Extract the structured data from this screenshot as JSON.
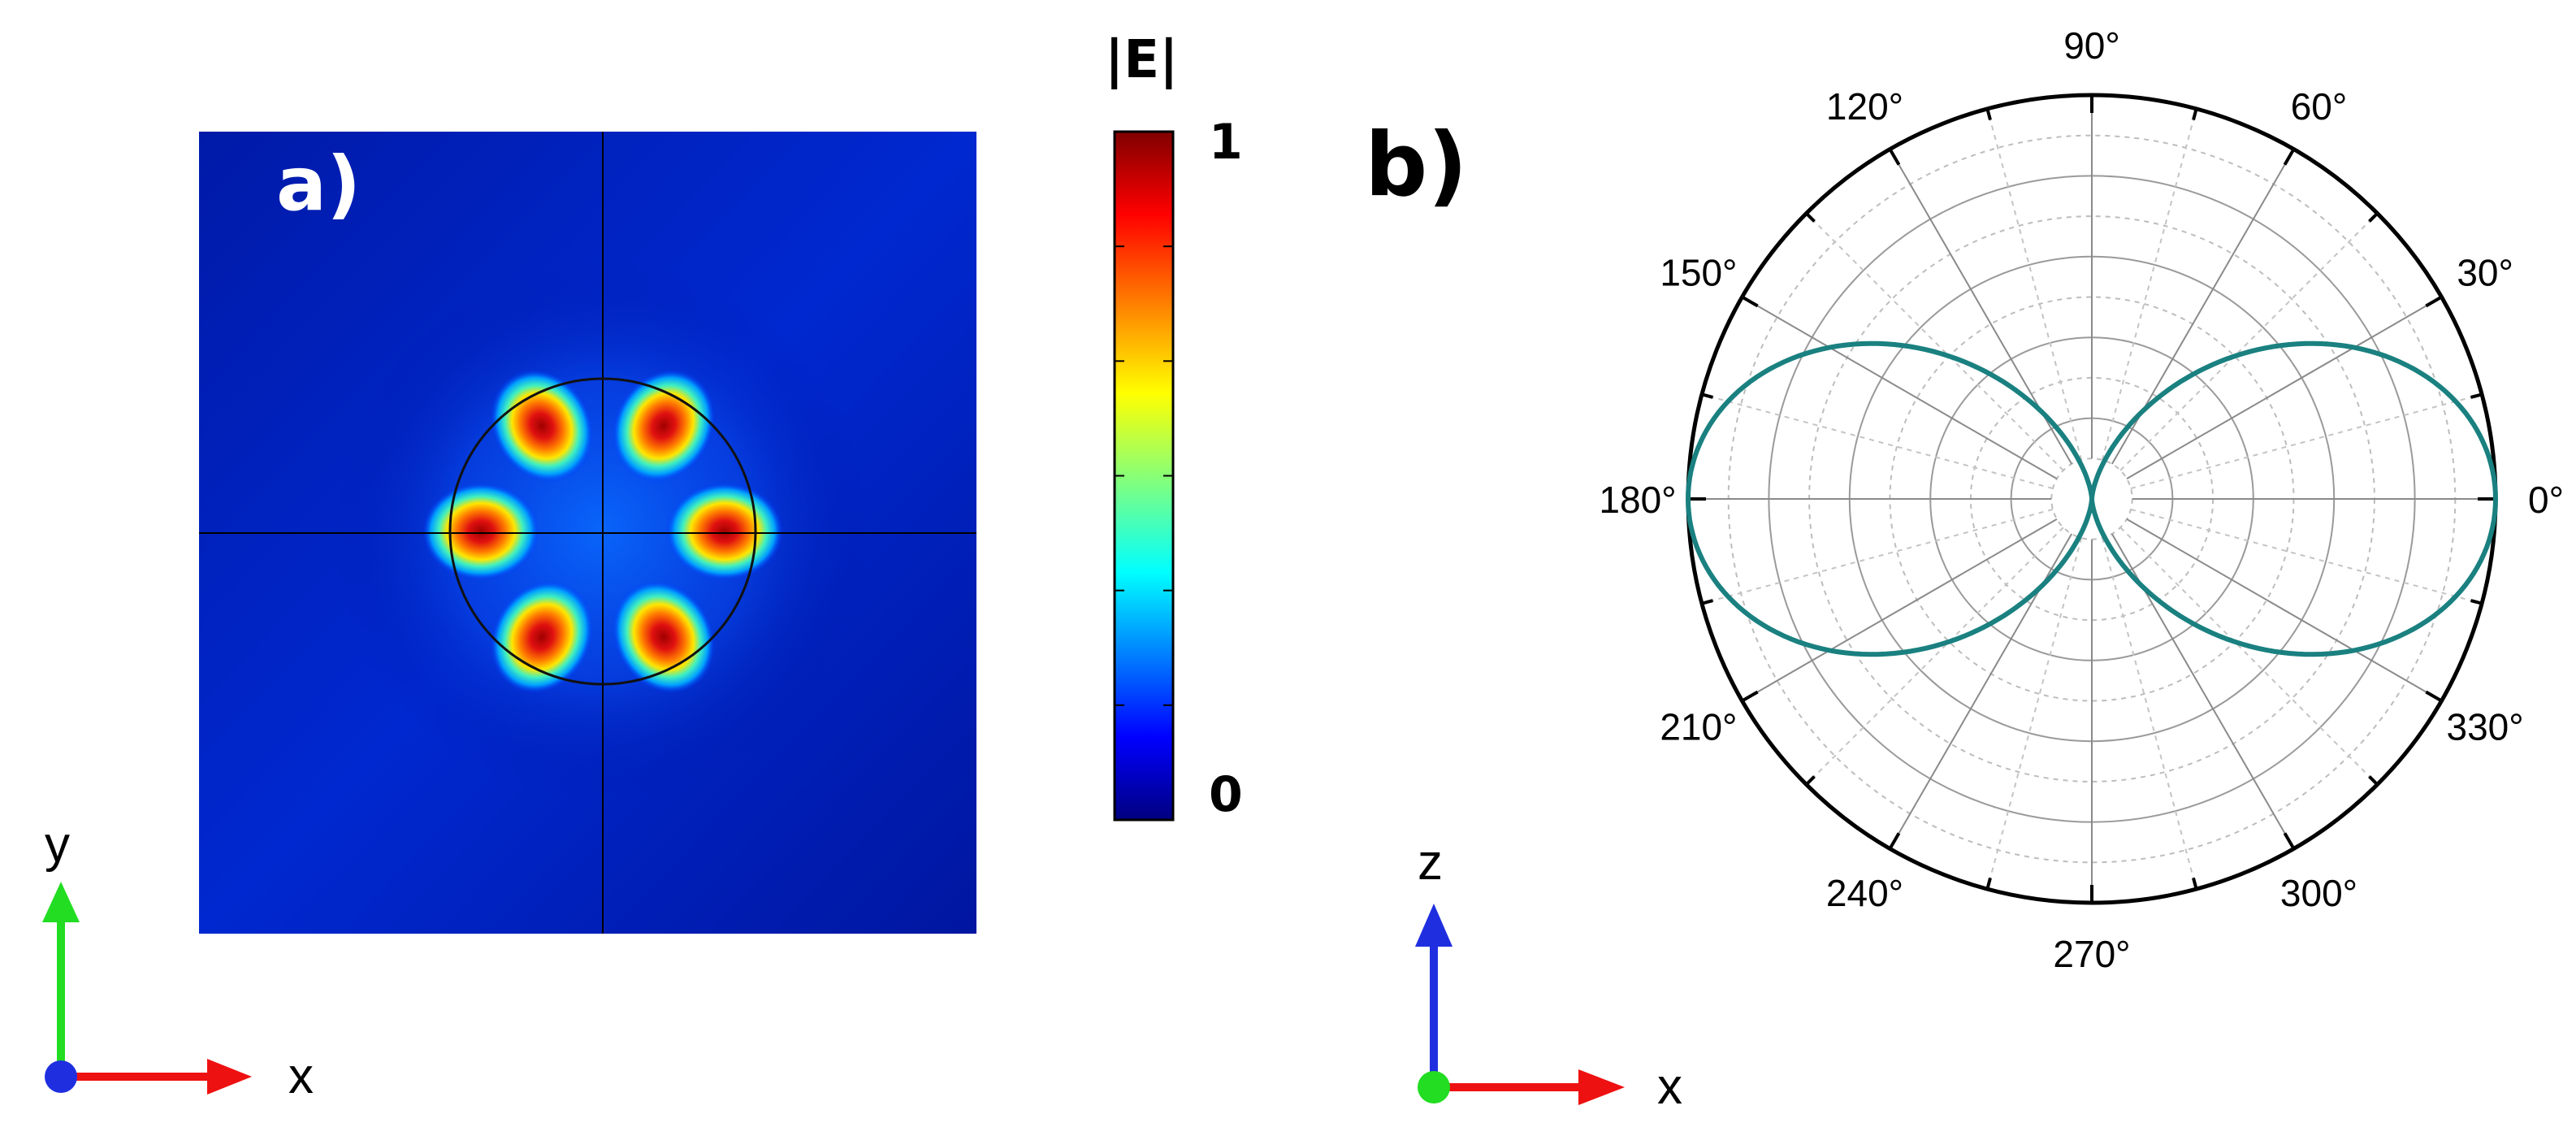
{
  "panel_a": {
    "label": "a)",
    "colorbar": {
      "title": "|E|",
      "max_label": "1",
      "min_label": "0",
      "colormap": "jet",
      "range": [
        0,
        1
      ]
    },
    "field_map": {
      "lobe_count": 6,
      "boundary": "circle",
      "crosshair": true
    },
    "axes": {
      "vertical": "y",
      "horizontal": "x",
      "vertical_color": "#22dd22",
      "horizontal_color": "#ee1111",
      "origin_color": "#1f2fe0"
    }
  },
  "panel_b": {
    "label": "b)",
    "axes": {
      "vertical": "z",
      "horizontal": "x",
      "vertical_color": "#1f2fe0",
      "horizontal_color": "#ee1111",
      "origin_color": "#22dd22"
    }
  },
  "chart_data": {
    "type": "polar",
    "angle_unit": "degrees",
    "angle_tick_values": [
      0,
      30,
      60,
      90,
      120,
      150,
      180,
      210,
      240,
      270,
      300,
      330
    ],
    "angle_tick_labels": [
      "0°",
      "30°",
      "60°",
      "90°",
      "120°",
      "150°",
      "180°",
      "210°",
      "240°",
      "270°",
      "300°",
      "330°"
    ],
    "radial_range": [
      0,
      1
    ],
    "radial_gridlines": 10,
    "grid": true,
    "series": [
      {
        "pattern": "cos^2(theta)",
        "color": "#1a8080",
        "theta_deg": [
          0,
          15,
          30,
          45,
          60,
          75,
          90,
          105,
          120,
          135,
          150,
          165,
          180,
          195,
          210,
          225,
          240,
          255,
          270,
          285,
          300,
          315,
          330,
          345
        ],
        "r": [
          1.0,
          0.933,
          0.75,
          0.5,
          0.25,
          0.067,
          0.0,
          0.067,
          0.25,
          0.5,
          0.75,
          0.933,
          1.0,
          0.933,
          0.75,
          0.5,
          0.25,
          0.067,
          0.0,
          0.067,
          0.25,
          0.5,
          0.75,
          0.933
        ]
      }
    ]
  }
}
